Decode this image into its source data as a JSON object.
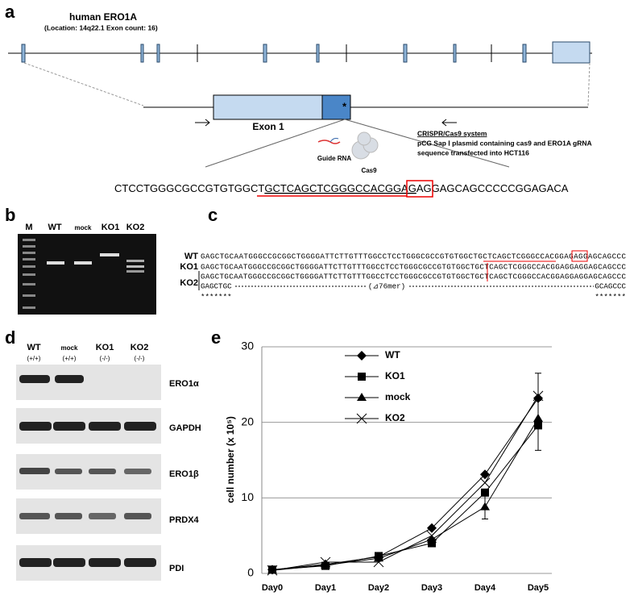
{
  "panel_a": {
    "label": "a",
    "gene_name": "human ERO1A",
    "gene_info": "(Location: 14q22.1 Exon count: 16)",
    "exon_label": "Exon 1",
    "site_mark": "*",
    "guide_rna": "Guide RNA",
    "cas9": "Cas9",
    "system_title": "CRISPR/Cas9 system",
    "system_line1": "pCG Sap Ⅰ plasmid containing cas9 and ERO1A gRNA",
    "system_line2": "sequence transfected into HCT116",
    "sequence": [
      "CTCCTGGGCGCCGTGTGGCT",
      "GCTCAGCTCGGGCCACGGAG",
      "AGG",
      "AGCAGCCCCCGGAGACA"
    ]
  },
  "panel_b": {
    "label": "b",
    "lanes": [
      "M",
      "WT",
      "mock",
      "KO1",
      "KO2"
    ]
  },
  "panel_c": {
    "label": "c",
    "rows": [
      {
        "name": "WT",
        "sequence": "GAGCTGCAATGGGCCGCGGCTGGGGATTCTTGTTTGGCCTCCTGGGCGCCGTGTGGCTGCTCAGCTCGGGCCACGGAGAGGAGCAGCCC"
      },
      {
        "name": "KO1",
        "sequence": "GAGCTGCAATGGGCCGCGGCTGGGGATTCTTGTTTGGCCTCCTGGGCGCCGTGTGGCTGCTCAGCTCGGGCCACGGAGGAGGAGCAGCCC"
      },
      {
        "name": "KO2",
        "sequence": "GAGCTGCAATGGGCCGCGGCTGGGGATTCTTGTTTGGCCTCCTGGGCGCCGTGTGGCTGCTCAGCTCGGGCCACGGAGGAGGAGCAGCCC"
      }
    ],
    "deletion": [
      "GAGCTGC",
      "(⊿76mer)",
      "GCAGCCC"
    ],
    "conserved": [
      "*******",
      "*******"
    ]
  },
  "panel_d": {
    "label": "d",
    "lanes": [
      {
        "name": "WT",
        "genotype": "(+/+)"
      },
      {
        "name": "mock",
        "genotype": "(+/+)"
      },
      {
        "name": "KO1",
        "genotype": "(-/-)"
      },
      {
        "name": "KO2",
        "genotype": "(-/-)"
      }
    ],
    "proteins": [
      "ERO1α",
      "GAPDH",
      "ERO1β",
      "PRDX4",
      "PDI"
    ]
  },
  "chart_data": {
    "type": "line",
    "label": "e",
    "y_label": "cell number (x 10⁵)",
    "categories": [
      "Day0",
      "Day1",
      "Day2",
      "Day3",
      "Day4",
      "Day5"
    ],
    "ylim": [
      0,
      30
    ],
    "yticks": [
      0,
      10,
      20,
      30
    ],
    "grid": true,
    "series": [
      {
        "name": "WT",
        "color": "#000000",
        "marker": "diamond",
        "values": [
          0.5,
          1.2,
          2.2,
          6.0,
          13.1,
          23.2
        ],
        "errors": [
          null,
          null,
          null,
          null,
          null,
          3.3
        ]
      },
      {
        "name": "KO1",
        "color": "#000000",
        "marker": "square",
        "values": [
          0.5,
          1.0,
          2.3,
          4.0,
          10.7,
          19.6
        ],
        "errors": [
          null,
          null,
          null,
          null,
          null,
          3.3
        ]
      },
      {
        "name": "mock",
        "color": "#000000",
        "marker": "triangle",
        "values": [
          0.4,
          1.1,
          2.0,
          4.5,
          8.8,
          20.5
        ],
        "errors": [
          null,
          null,
          null,
          null,
          1.6,
          null
        ]
      },
      {
        "name": "KO2",
        "color": "#000000",
        "marker": "x",
        "values": [
          0.4,
          1.5,
          1.5,
          5.0,
          12.0,
          23.5
        ],
        "errors": [
          null,
          null,
          null,
          null,
          null,
          null
        ]
      }
    ]
  }
}
